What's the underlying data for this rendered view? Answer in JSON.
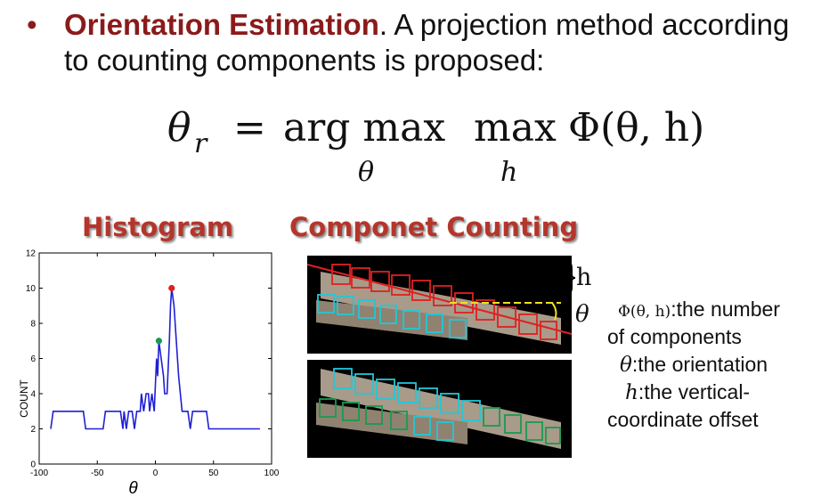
{
  "slide": {
    "bullet": "•",
    "keyword": "Orientation Estimation",
    "text": ". A projection method according to counting components is proposed:"
  },
  "formula": {
    "lhs": "θ",
    "lhs_sub": "r",
    "eq": "=",
    "argmax": "arg max",
    "argmax_sub": "θ",
    "max": "max",
    "max_sub": "h",
    "phi": "Φ(θ, h)"
  },
  "histogram": {
    "title": "Histogram"
  },
  "counting": {
    "title": "Componet Counting",
    "h_label": "h",
    "theta_label": "θ"
  },
  "legend": {
    "phi_symbol": "Φ(θ, h)",
    "phi_text": ":the number",
    "phi_text2": "of components",
    "theta_symbol": "θ",
    "theta_text": ":the orientation",
    "h_symbol": "h",
    "h_text": ":the vertical-",
    "h_text2": "coordinate offset"
  },
  "chart_data": {
    "type": "line",
    "xlabel": "θ",
    "ylabel": "COUNT",
    "xlim": [
      -100,
      100
    ],
    "ylim": [
      0,
      12
    ],
    "xticks": [
      -100,
      -50,
      0,
      50,
      100
    ],
    "yticks": [
      0,
      2,
      4,
      6,
      8,
      10,
      12
    ],
    "grid": false,
    "line_color": "#1f1fd6",
    "points": [
      [
        -90,
        2
      ],
      [
        -88,
        3
      ],
      [
        -62,
        3
      ],
      [
        -60,
        2
      ],
      [
        -45,
        2
      ],
      [
        -43,
        3
      ],
      [
        -30,
        3
      ],
      [
        -28,
        2
      ],
      [
        -27,
        3
      ],
      [
        -25,
        2
      ],
      [
        -23,
        3
      ],
      [
        -20,
        3
      ],
      [
        -18,
        2
      ],
      [
        -16,
        3
      ],
      [
        -13,
        3
      ],
      [
        -12,
        4
      ],
      [
        -10,
        3
      ],
      [
        -8,
        4
      ],
      [
        -6,
        4
      ],
      [
        -5,
        3
      ],
      [
        -3,
        4
      ],
      [
        -1,
        3
      ],
      [
        1,
        6
      ],
      [
        2,
        5
      ],
      [
        3,
        7
      ],
      [
        5,
        6
      ],
      [
        7,
        5
      ],
      [
        8,
        4
      ],
      [
        10,
        4
      ],
      [
        12,
        7
      ],
      [
        13,
        9
      ],
      [
        14,
        10
      ],
      [
        16,
        9
      ],
      [
        18,
        7
      ],
      [
        20,
        5
      ],
      [
        23,
        3
      ],
      [
        28,
        3
      ],
      [
        30,
        2
      ],
      [
        32,
        3
      ],
      [
        44,
        3
      ],
      [
        46,
        2
      ],
      [
        90,
        2
      ]
    ],
    "markers": [
      {
        "x": 14,
        "y": 10,
        "color": "#e02020"
      },
      {
        "x": 3,
        "y": 7,
        "color": "#1a9a50"
      }
    ]
  }
}
